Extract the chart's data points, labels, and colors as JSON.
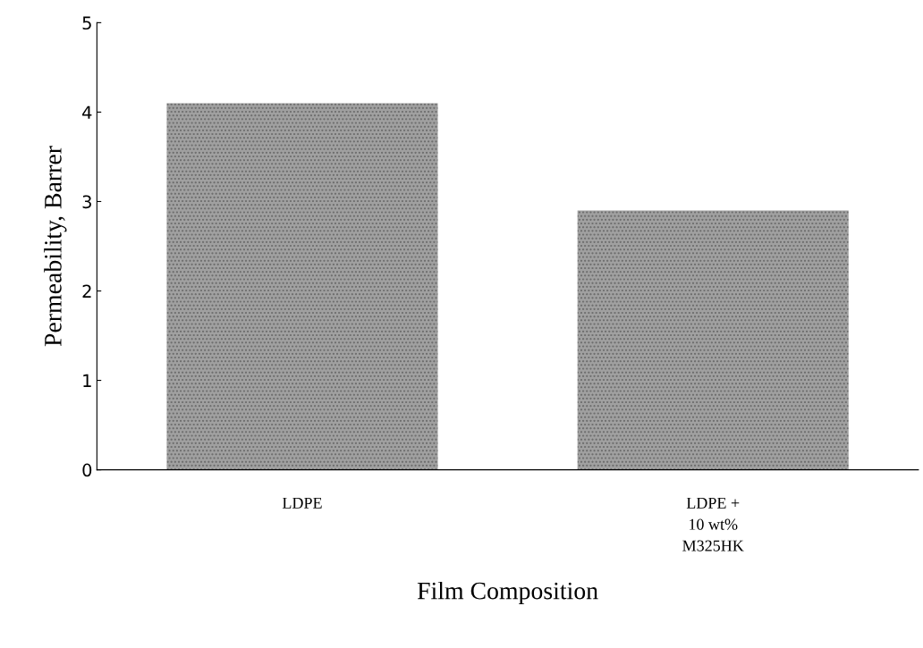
{
  "chart_data": {
    "type": "bar",
    "xlabel": "Film Composition",
    "ylabel": "Permeability, Barrer",
    "categories": [
      "LDPE",
      "LDPE +\n10 wt%\nM325HK"
    ],
    "values": [
      4.1,
      2.9
    ],
    "color": "#a0a0a0",
    "ylim": [
      0,
      5
    ],
    "yticks": [
      0,
      1,
      2,
      3,
      4,
      5
    ],
    "grid": false
  }
}
